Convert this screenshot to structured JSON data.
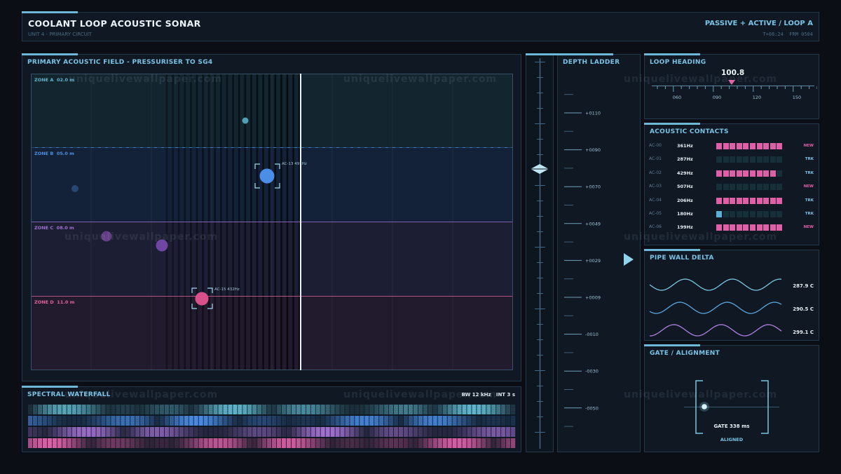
{
  "header": {
    "title": "COOLANT LOOP ACOUSTIC SONAR",
    "subtitle": "UNIT 4 - PRIMARY CIRCUIT",
    "mode": "PASSIVE + ACTIVE / LOOP A",
    "clock": "T+08:24  FRM 0504"
  },
  "field": {
    "title": "PRIMARY ACOUSTIC FIELD - PRESSURISER TO SG4",
    "zones": [
      {
        "label": "ZONE A  02.0 m",
        "color": "#5fb6cc"
      },
      {
        "label": "ZONE B  05.0 m",
        "color": "#4b8fe0"
      },
      {
        "label": "ZONE C  08.0 m",
        "color": "#a070d0"
      },
      {
        "label": "ZONE D  11.0 m",
        "color": "#e0609a"
      }
    ],
    "target_b": "AC-13 491Hz",
    "target_d": "AC-15 432Hz"
  },
  "waterfall": {
    "title": "SPECTRAL WATERFALL",
    "info": "BW 12 kHz   INT 3 s"
  },
  "depth": {
    "title": "DEPTH LADDER",
    "ticks": [
      "+0110",
      "+0090",
      "+0070",
      "+0049",
      "+0029",
      "+0009",
      "-0010",
      "-0030",
      "-0050"
    ]
  },
  "heading": {
    "title": "LOOP HEADING",
    "value": "100.8",
    "ticks": [
      "060",
      "090",
      "120",
      "150"
    ]
  },
  "contacts": {
    "title": "ACOUSTIC CONTACTS",
    "rows": [
      {
        "id": "AC-00",
        "freq": "361Hz",
        "level": 1.0,
        "bar_color": "#e060a8",
        "status": "NEW"
      },
      {
        "id": "AC-01",
        "freq": "287Hz",
        "level": 0.0,
        "bar_color": "#e060a8",
        "status": "TRK"
      },
      {
        "id": "AC-02",
        "freq": "429Hz",
        "level": 0.9,
        "bar_color": "#e060a8",
        "status": "TRK"
      },
      {
        "id": "AC-03",
        "freq": "507Hz",
        "level": 0.0,
        "bar_color": "#e060a8",
        "status": "NEW"
      },
      {
        "id": "AC-04",
        "freq": "206Hz",
        "level": 1.0,
        "bar_color": "#e060a8",
        "status": "TRK"
      },
      {
        "id": "AC-05",
        "freq": "180Hz",
        "level": 0.1,
        "bar_color": "#5ab0d8",
        "status": "TRK"
      },
      {
        "id": "AC-06",
        "freq": "199Hz",
        "level": 1.0,
        "bar_color": "#e060a8",
        "status": "NEW"
      }
    ]
  },
  "pipe": {
    "title": "PIPE WALL DELTA",
    "values": [
      "287.9 C",
      "290.5 C",
      "299.1 C"
    ],
    "colors": [
      "#7cc6e2",
      "#5aa8e0",
      "#b080e0"
    ]
  },
  "gate": {
    "title": "GATE / ALIGNMENT",
    "value": "GATE 338 ms",
    "status": "ALIGNED"
  },
  "watermark": "uniquelivewallpaper.com"
}
